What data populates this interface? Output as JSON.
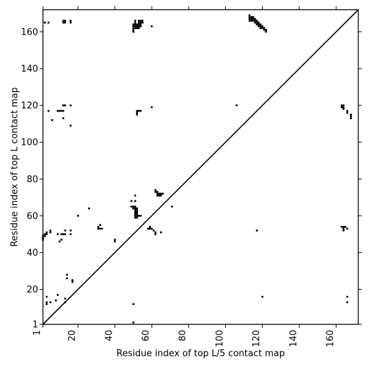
{
  "chart_data": {
    "type": "heatmap",
    "xlabel": "Residue index of top L/5 contact map",
    "ylabel": "Residue index of top L contact map",
    "xlim": [
      1,
      172
    ],
    "ylim": [
      1,
      172
    ],
    "x_ticks": [
      1,
      20,
      40,
      60,
      80,
      100,
      120,
      140,
      160
    ],
    "y_ticks": [
      1,
      20,
      40,
      60,
      80,
      100,
      120,
      140,
      160
    ],
    "x_tick_labels": [
      "1",
      "20",
      "40",
      "60",
      "80",
      "100",
      "120",
      "140",
      "160"
    ],
    "y_tick_labels": [
      "1",
      "20",
      "40",
      "60",
      "80",
      "100",
      "120",
      "140",
      "160"
    ],
    "x_tick_rotation_deg": -90,
    "diagonal_line": true,
    "colors": {
      "contact": "#000000",
      "background": "#ffffff"
    },
    "contacts": [
      [
        1,
        49
      ],
      [
        1,
        48
      ],
      [
        2,
        49
      ],
      [
        2,
        50
      ],
      [
        3,
        50
      ],
      [
        3,
        51
      ],
      [
        1,
        47
      ],
      [
        5,
        52
      ],
      [
        5,
        51
      ],
      [
        9,
        50
      ],
      [
        10,
        46
      ],
      [
        11,
        47
      ],
      [
        11,
        50
      ],
      [
        12,
        50
      ],
      [
        13,
        52
      ],
      [
        13,
        50
      ],
      [
        16,
        52
      ],
      [
        16,
        50
      ],
      [
        2,
        165
      ],
      [
        4,
        165
      ],
      [
        12,
        166
      ],
      [
        13,
        166
      ],
      [
        12,
        165
      ],
      [
        13,
        165
      ],
      [
        16,
        166
      ],
      [
        16,
        165
      ],
      [
        4,
        117
      ],
      [
        6,
        112
      ],
      [
        9,
        117
      ],
      [
        10,
        117
      ],
      [
        11,
        117
      ],
      [
        12,
        117
      ],
      [
        12,
        113
      ],
      [
        12,
        120
      ],
      [
        13,
        120
      ],
      [
        16,
        120
      ],
      [
        16,
        109
      ],
      [
        50,
        164
      ],
      [
        50,
        163
      ],
      [
        50,
        162
      ],
      [
        50,
        161
      ],
      [
        50,
        160
      ],
      [
        51,
        166
      ],
      [
        51,
        165
      ],
      [
        51,
        164
      ],
      [
        51,
        163
      ],
      [
        51,
        162
      ],
      [
        52,
        164
      ],
      [
        52,
        163
      ],
      [
        52,
        162
      ],
      [
        53,
        166
      ],
      [
        53,
        165
      ],
      [
        53,
        164
      ],
      [
        53,
        163
      ],
      [
        53,
        162
      ],
      [
        54,
        166
      ],
      [
        54,
        165
      ],
      [
        54,
        164
      ],
      [
        54,
        163
      ],
      [
        55,
        166
      ],
      [
        55,
        165
      ],
      [
        60,
        163
      ],
      [
        52,
        117
      ],
      [
        52,
        116
      ],
      [
        52,
        115
      ],
      [
        53,
        117
      ],
      [
        54,
        117
      ],
      [
        60,
        119
      ],
      [
        113,
        169
      ],
      [
        113,
        168
      ],
      [
        113,
        167
      ],
      [
        113,
        166
      ],
      [
        114,
        168
      ],
      [
        114,
        167
      ],
      [
        114,
        166
      ],
      [
        115,
        168
      ],
      [
        115,
        167
      ],
      [
        115,
        166
      ],
      [
        116,
        167
      ],
      [
        116,
        166
      ],
      [
        116,
        165
      ],
      [
        117,
        166
      ],
      [
        117,
        165
      ],
      [
        117,
        164
      ],
      [
        118,
        165
      ],
      [
        118,
        164
      ],
      [
        118,
        163
      ],
      [
        119,
        164
      ],
      [
        119,
        163
      ],
      [
        119,
        162
      ],
      [
        120,
        163
      ],
      [
        120,
        162
      ],
      [
        121,
        162
      ],
      [
        121,
        161
      ],
      [
        122,
        161
      ],
      [
        122,
        160
      ],
      [
        106,
        120
      ],
      [
        163,
        120
      ],
      [
        163,
        119
      ],
      [
        164,
        120
      ],
      [
        164,
        119
      ],
      [
        164,
        118
      ],
      [
        166,
        117
      ],
      [
        166,
        116
      ],
      [
        168,
        115
      ],
      [
        168,
        114
      ],
      [
        168,
        113
      ],
      [
        49,
        68
      ],
      [
        49,
        65
      ],
      [
        50,
        65
      ],
      [
        50,
        64
      ],
      [
        51,
        71
      ],
      [
        51,
        68
      ],
      [
        51,
        65
      ],
      [
        51,
        64
      ],
      [
        51,
        63
      ],
      [
        51,
        62
      ],
      [
        51,
        61
      ],
      [
        51,
        60
      ],
      [
        51,
        59
      ],
      [
        52,
        64
      ],
      [
        52,
        63
      ],
      [
        52,
        62
      ],
      [
        52,
        61
      ],
      [
        52,
        60
      ],
      [
        52,
        59
      ],
      [
        53,
        60
      ],
      [
        54,
        60
      ],
      [
        58,
        53
      ],
      [
        59,
        54
      ],
      [
        59,
        53
      ],
      [
        60,
        53
      ],
      [
        61,
        52
      ],
      [
        62,
        74
      ],
      [
        62,
        73
      ],
      [
        62,
        51
      ],
      [
        62,
        50
      ],
      [
        63,
        73
      ],
      [
        63,
        72
      ],
      [
        63,
        71
      ],
      [
        64,
        72
      ],
      [
        64,
        71
      ],
      [
        65,
        72
      ],
      [
        65,
        71
      ],
      [
        65,
        51
      ],
      [
        66,
        72
      ],
      [
        71,
        65
      ],
      [
        20,
        60
      ],
      [
        26,
        64
      ],
      [
        31,
        54
      ],
      [
        31,
        53
      ],
      [
        32,
        55
      ],
      [
        32,
        53
      ],
      [
        33,
        53
      ],
      [
        40,
        47
      ],
      [
        40,
        46
      ],
      [
        163,
        54
      ],
      [
        164,
        54
      ],
      [
        164,
        53
      ],
      [
        164,
        52
      ],
      [
        165,
        54
      ],
      [
        166,
        53
      ],
      [
        117,
        52
      ],
      [
        3,
        16
      ],
      [
        3,
        13
      ],
      [
        3,
        12
      ],
      [
        5,
        13
      ],
      [
        8,
        14
      ],
      [
        9,
        17
      ],
      [
        13,
        15
      ],
      [
        13,
        13
      ],
      [
        14,
        28
      ],
      [
        14,
        26
      ],
      [
        17,
        25
      ],
      [
        17,
        24
      ],
      [
        50,
        12
      ],
      [
        50,
        2
      ],
      [
        120,
        16
      ],
      [
        166,
        16
      ],
      [
        166,
        13
      ]
    ]
  }
}
